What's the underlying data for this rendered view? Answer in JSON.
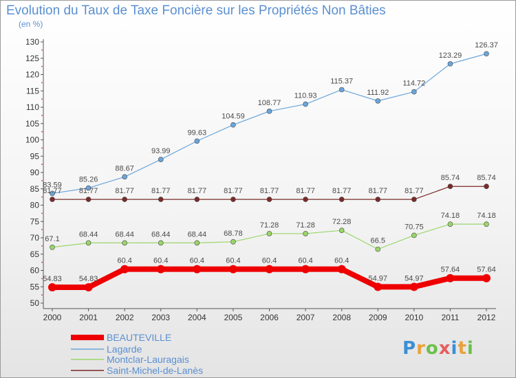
{
  "title": "Evolution du Taux de Taxe Foncière sur les Propriétés Non Bâties",
  "unit": "(en %)",
  "logo": "Proxiti",
  "chart_data": {
    "type": "line",
    "x": [
      "2000",
      "2001",
      "2002",
      "2003",
      "2004",
      "2005",
      "2006",
      "2007",
      "2008",
      "2009",
      "2010",
      "2011",
      "2012"
    ],
    "ylim": [
      50,
      130
    ],
    "yticks": [
      50,
      55,
      60,
      65,
      70,
      75,
      80,
      85,
      90,
      95,
      100,
      105,
      110,
      115,
      120,
      125,
      130
    ],
    "grid": false,
    "legend_position": "bottom-left",
    "series": [
      {
        "name": "BEAUTEVILLE",
        "color": "#ee0000",
        "values": [
          54.83,
          54.83,
          60.4,
          60.4,
          60.4,
          60.4,
          60.4,
          60.4,
          60.4,
          54.97,
          54.97,
          57.64,
          57.64
        ],
        "labels": [
          "54.83",
          "54.83",
          "60.4",
          "60.4",
          "60.4",
          "60.4",
          "60.4",
          "60.4",
          "60.4",
          "54.97",
          "54.97",
          "57.64",
          "57.64"
        ]
      },
      {
        "name": "Lagarde",
        "color": "#6aa6dc",
        "values": [
          83.59,
          85.26,
          88.67,
          93.99,
          99.63,
          104.59,
          108.77,
          110.93,
          115.37,
          111.92,
          114.72,
          123.29,
          126.37
        ],
        "labels": [
          "83.59",
          "85.26",
          "88.67",
          "93.99",
          "99.63",
          "104.59",
          "108.77",
          "110.93",
          "115.37",
          "111.92",
          "114.72",
          "123.29",
          "126.37"
        ]
      },
      {
        "name": "Montclar-Lauragais",
        "color": "#9ad66a",
        "values": [
          67.1,
          68.44,
          68.44,
          68.44,
          68.44,
          68.78,
          71.28,
          71.28,
          72.28,
          66.5,
          70.75,
          74.18,
          74.18
        ],
        "labels": [
          "67.1",
          "68.44",
          "68.44",
          "68.44",
          "68.44",
          "68.78",
          "71.28",
          "71.28",
          "72.28",
          "66.5",
          "70.75",
          "74.18",
          "74.18"
        ]
      },
      {
        "name": "Saint-Michel-de-Lanès",
        "color": "#7a2a2a",
        "values": [
          81.77,
          81.77,
          81.77,
          81.77,
          81.77,
          81.77,
          81.77,
          81.77,
          81.77,
          81.77,
          81.77,
          85.74,
          85.74
        ],
        "labels": [
          "81.77",
          "81.77",
          "81.77",
          "81.77",
          "81.77",
          "81.77",
          "81.77",
          "81.77",
          "81.77",
          "81.77",
          "81.77",
          "85.74",
          "85.74"
        ]
      }
    ]
  }
}
